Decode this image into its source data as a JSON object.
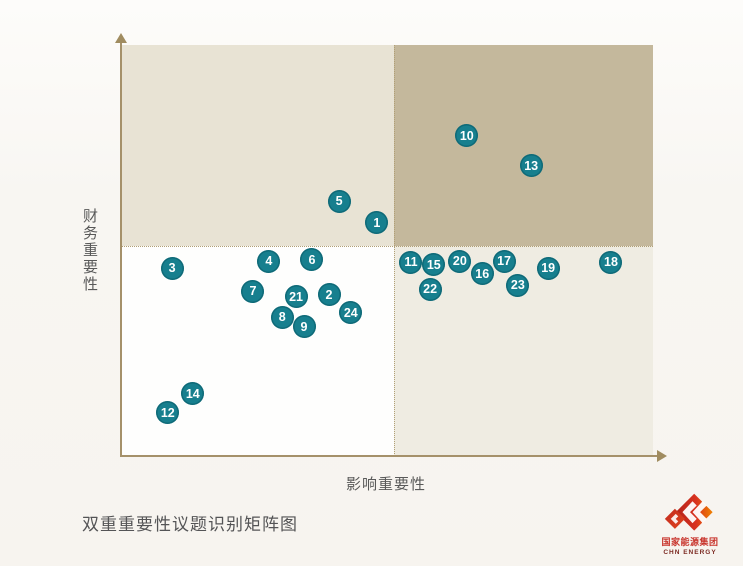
{
  "title": "双重重要性议题识别矩阵图",
  "logo": {
    "company_zh": "国家能源集团",
    "company_en": "CHN ENERGY"
  },
  "colors": {
    "point_fill": "#177f8e",
    "point_border": "#0e6c79",
    "point_text": "#ffffff",
    "axis": "#a5916a",
    "midline_dotted": "#b1a076",
    "quadrant_top_left": "#e8e3d4",
    "quadrant_top_right": "#c4b89c",
    "quadrant_bottom_left": "#fefefd",
    "quadrant_bottom_right": "#efece2",
    "label_text": "#595959",
    "logo_red": "#c8342c",
    "logo_orange": "#ef8200"
  },
  "chart_data": {
    "type": "scatter",
    "title": "双重重要性议题识别矩阵图",
    "xlabel": "影响重要性",
    "ylabel": "财务重要性",
    "xlim": [
      0,
      1
    ],
    "ylim": [
      0,
      1
    ],
    "axis_ticks": "none",
    "grid": false,
    "legend": "none",
    "quadrant_split": {
      "x": 0.513,
      "y": 0.511
    },
    "points": [
      {
        "id": 1,
        "x": 0.481,
        "y": 0.567
      },
      {
        "id": 2,
        "x": 0.391,
        "y": 0.392
      },
      {
        "id": 3,
        "x": 0.096,
        "y": 0.457
      },
      {
        "id": 4,
        "x": 0.278,
        "y": 0.474
      },
      {
        "id": 5,
        "x": 0.41,
        "y": 0.62
      },
      {
        "id": 6,
        "x": 0.359,
        "y": 0.477
      },
      {
        "id": 7,
        "x": 0.248,
        "y": 0.401
      },
      {
        "id": 8,
        "x": 0.303,
        "y": 0.338
      },
      {
        "id": 9,
        "x": 0.344,
        "y": 0.314
      },
      {
        "id": 10,
        "x": 0.65,
        "y": 0.779
      },
      {
        "id": 11,
        "x": 0.545,
        "y": 0.472
      },
      {
        "id": 12,
        "x": 0.088,
        "y": 0.105
      },
      {
        "id": 13,
        "x": 0.771,
        "y": 0.706
      },
      {
        "id": 14,
        "x": 0.135,
        "y": 0.151
      },
      {
        "id": 15,
        "x": 0.588,
        "y": 0.465
      },
      {
        "id": 16,
        "x": 0.679,
        "y": 0.443
      },
      {
        "id": 17,
        "x": 0.72,
        "y": 0.474
      },
      {
        "id": 18,
        "x": 0.921,
        "y": 0.472
      },
      {
        "id": 19,
        "x": 0.803,
        "y": 0.457
      },
      {
        "id": 20,
        "x": 0.637,
        "y": 0.474
      },
      {
        "id": 21,
        "x": 0.329,
        "y": 0.387
      },
      {
        "id": 22,
        "x": 0.581,
        "y": 0.406
      },
      {
        "id": 23,
        "x": 0.746,
        "y": 0.416
      },
      {
        "id": 24,
        "x": 0.432,
        "y": 0.348
      }
    ]
  }
}
